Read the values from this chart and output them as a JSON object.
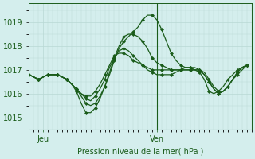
{
  "title": "",
  "xlabel": "Pression niveau de la mer( hPa )",
  "background_color": "#d4eeed",
  "plot_background": "#d4eeed",
  "line_color": "#1a5c1a",
  "marker_color": "#1a5c1a",
  "grid_color": "#b8d8d4",
  "tick_color": "#1a5c1a",
  "ylim": [
    1014.5,
    1019.8
  ],
  "yticks": [
    1015,
    1016,
    1017,
    1018,
    1019
  ],
  "xlim": [
    0,
    47
  ],
  "xtick_positions": [
    3,
    27
  ],
  "xtick_labels": [
    "Jeu",
    "Ven"
  ],
  "vline_x": 27,
  "series": [
    [
      1016.8,
      1016.7,
      1016.6,
      1016.7,
      1016.8,
      1016.8,
      1016.8,
      1016.7,
      1016.6,
      1016.4,
      1016.1,
      1015.6,
      1015.2,
      1015.2,
      1015.4,
      1015.8,
      1016.3,
      1016.8,
      1017.4,
      1017.9,
      1018.2,
      1018.4,
      1018.6,
      1018.8,
      1019.1,
      1019.3,
      1019.3,
      1019.1,
      1018.7,
      1018.2,
      1017.7,
      1017.4,
      1017.2,
      1017.1,
      1017.1,
      1017.0,
      1016.9,
      1016.6,
      1016.1,
      1016.0,
      1016.1,
      1016.3,
      1016.6,
      1016.8,
      1017.0,
      1017.1,
      1017.2
    ],
    [
      1016.8,
      1016.7,
      1016.6,
      1016.7,
      1016.8,
      1016.8,
      1016.8,
      1016.7,
      1016.6,
      1016.4,
      1016.2,
      1015.9,
      1015.6,
      1015.5,
      1015.6,
      1015.9,
      1016.3,
      1016.9,
      1017.5,
      1018.0,
      1018.4,
      1018.5,
      1018.5,
      1018.4,
      1018.2,
      1017.9,
      1017.5,
      1017.3,
      1017.2,
      1017.1,
      1017.0,
      1017.0,
      1017.0,
      1017.0,
      1017.0,
      1017.0,
      1017.0,
      1016.8,
      1016.5,
      1016.2,
      1016.0,
      1016.1,
      1016.3,
      1016.6,
      1016.9,
      1017.1,
      1017.2
    ],
    [
      1016.8,
      1016.7,
      1016.6,
      1016.7,
      1016.8,
      1016.8,
      1016.8,
      1016.7,
      1016.6,
      1016.4,
      1016.2,
      1016.0,
      1015.8,
      1015.7,
      1015.9,
      1016.2,
      1016.6,
      1017.1,
      1017.5,
      1017.8,
      1017.9,
      1017.8,
      1017.6,
      1017.4,
      1017.2,
      1017.0,
      1016.9,
      1016.8,
      1016.8,
      1016.8,
      1016.8,
      1016.9,
      1017.0,
      1017.1,
      1017.1,
      1017.1,
      1017.0,
      1016.8,
      1016.5,
      1016.2,
      1016.0,
      1016.1,
      1016.3,
      1016.6,
      1016.8,
      1017.0,
      1017.2
    ],
    [
      1016.8,
      1016.7,
      1016.6,
      1016.7,
      1016.8,
      1016.8,
      1016.8,
      1016.7,
      1016.6,
      1016.4,
      1016.2,
      1016.0,
      1015.9,
      1015.9,
      1016.1,
      1016.4,
      1016.8,
      1017.2,
      1017.6,
      1017.7,
      1017.7,
      1017.6,
      1017.4,
      1017.3,
      1017.2,
      1017.1,
      1017.0,
      1017.0,
      1017.0,
      1017.0,
      1017.0,
      1017.0,
      1017.0,
      1017.0,
      1017.0,
      1017.0,
      1017.0,
      1016.9,
      1016.6,
      1016.3,
      1016.1,
      1016.1,
      1016.3,
      1016.6,
      1016.9,
      1017.1,
      1017.2
    ]
  ],
  "marker_step": 2,
  "marker_size": 2.5,
  "line_width": 0.9,
  "figsize": [
    3.2,
    2.0
  ],
  "dpi": 100
}
